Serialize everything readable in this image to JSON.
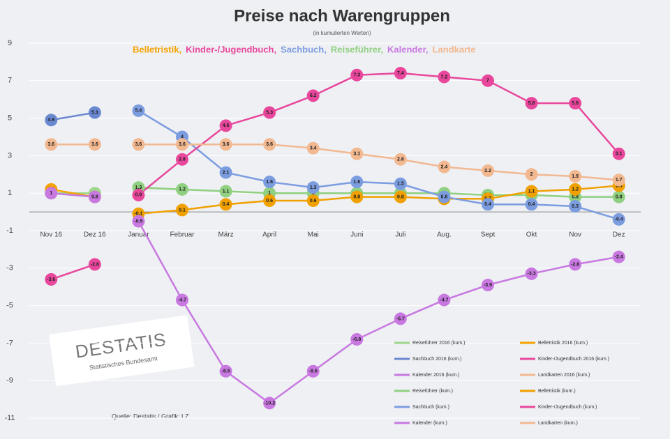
{
  "chart_data": {
    "type": "line",
    "title": "Preise nach Warengruppen",
    "subtitle": "(in kumulierten Werten)",
    "groups": [
      {
        "name": "Belletristik,",
        "color": "#f5a300"
      },
      {
        "name": "Kinder-/Jugendbuch,",
        "color": "#e8479c"
      },
      {
        "name": "Sachbuch,",
        "color": "#7c9ce0"
      },
      {
        "name": "Reiseführer,",
        "color": "#90d080"
      },
      {
        "name": "Kalender,",
        "color": "#c878e0"
      },
      {
        "name": "Landkarte",
        "color": "#f2b890"
      }
    ],
    "categories": [
      "Nov 16",
      "Dez 16",
      "Januar",
      "Februar",
      "März",
      "April",
      "Mai",
      "Juni",
      "Juli",
      "Aug.",
      "Sept",
      "Okt",
      "Nov",
      "Dez"
    ],
    "ylim": [
      -11,
      9
    ],
    "yticks": [
      9,
      7,
      5,
      3,
      1,
      -1,
      -3,
      -5,
      -7,
      -9,
      -11
    ],
    "grid": true,
    "series": [
      {
        "name": "Reiseführer 2016 (kum.)",
        "color": "#9ed68c",
        "values": [
          1.0,
          1.0,
          null,
          null,
          null,
          null,
          null,
          null,
          null,
          null,
          null,
          null,
          null,
          null
        ]
      },
      {
        "name": "Belletristik 2016 (kum.)",
        "color": "#f5a300",
        "values": [
          1.2,
          0.8,
          null,
          null,
          null,
          null,
          null,
          null,
          null,
          null,
          null,
          null,
          null,
          null
        ]
      },
      {
        "name": "Sachbuch 2016 (kum.)",
        "color": "#6a88d0",
        "values": [
          4.9,
          5.3,
          null,
          null,
          null,
          null,
          null,
          null,
          null,
          null,
          null,
          null,
          null,
          null
        ]
      },
      {
        "name": "Kinder-/Jugendbuch 2016 (kum.)",
        "color": "#e8479c",
        "values": [
          -3.6,
          -2.8,
          null,
          null,
          null,
          null,
          null,
          null,
          null,
          null,
          null,
          null,
          null,
          null
        ]
      },
      {
        "name": "Kalender 2016 (kum.)",
        "color": "#c878e0",
        "values": [
          1.0,
          0.8,
          null,
          null,
          null,
          null,
          null,
          null,
          null,
          null,
          null,
          null,
          null,
          null
        ]
      },
      {
        "name": "Landkarten 2016 (kum.)",
        "color": "#f2b890",
        "values": [
          3.6,
          3.6,
          null,
          null,
          null,
          null,
          null,
          null,
          null,
          null,
          null,
          null,
          null,
          null
        ]
      },
      {
        "name": "Reiseführer (kum.)",
        "color": "#90d080",
        "values": [
          null,
          null,
          1.3,
          1.2,
          1.1,
          1.0,
          1.0,
          1.0,
          1.0,
          1.0,
          0.9,
          0.9,
          0.8,
          0.8
        ]
      },
      {
        "name": "Belletristik (kum.)",
        "color": "#f0a000",
        "values": [
          null,
          null,
          -0.1,
          0.1,
          0.4,
          0.6,
          0.6,
          0.8,
          0.8,
          0.7,
          0.7,
          1.1,
          1.2,
          1.4
        ]
      },
      {
        "name": "Sachbuch (kum.)",
        "color": "#7c9ce0",
        "values": [
          null,
          null,
          5.4,
          4.0,
          2.1,
          1.6,
          1.3,
          1.6,
          1.5,
          0.8,
          0.4,
          0.4,
          0.3,
          -0.4
        ]
      },
      {
        "name": "Kinder-/Jugendbuch (kum.)",
        "color": "#e8479c",
        "values": [
          null,
          null,
          0.9,
          2.8,
          4.6,
          5.3,
          6.2,
          7.3,
          7.4,
          7.2,
          7.0,
          5.8,
          5.8,
          3.1
        ]
      },
      {
        "name": "Kalender (kum.)",
        "color": "#c878e0",
        "values": [
          null,
          null,
          -0.5,
          -4.7,
          -8.5,
          -10.2,
          -8.5,
          -6.8,
          -5.7,
          -4.7,
          -3.9,
          -3.3,
          -2.8,
          -2.4
        ]
      },
      {
        "name": "Landkarten (kum.)",
        "color": "#f2b890",
        "values": [
          null,
          null,
          3.6,
          3.6,
          3.6,
          3.6,
          3.4,
          3.1,
          2.8,
          2.4,
          2.2,
          2.0,
          1.9,
          1.7
        ]
      }
    ],
    "logo": {
      "name": "DESTATIS",
      "tagline": "Statistisches Bundesamt"
    },
    "source": "Quelle: Destatis / Grafik: LZ"
  }
}
